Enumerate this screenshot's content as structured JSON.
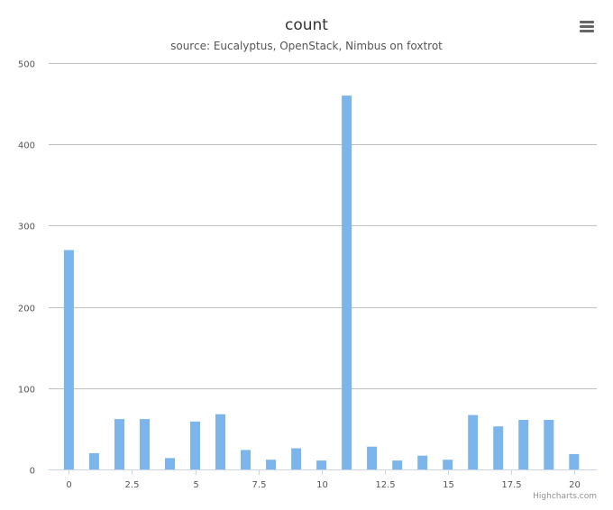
{
  "chart_data": {
    "type": "bar",
    "title": "count",
    "subtitle": "source: Eucalyptus, OpenStack, Nimbus on foxtrot",
    "x": [
      0,
      1,
      2,
      3,
      4,
      5,
      6,
      7,
      8,
      9,
      10,
      11,
      12,
      13,
      14,
      15,
      16,
      17,
      18,
      19,
      20
    ],
    "values": [
      270,
      20,
      62,
      62,
      14,
      59,
      68,
      24,
      12,
      26,
      11,
      460,
      28,
      11,
      17,
      12,
      67,
      53,
      61,
      61,
      19
    ],
    "xlim": [
      -0.8,
      20.9
    ],
    "ylim": [
      0,
      500
    ],
    "x_ticks": [
      0,
      2.5,
      5,
      7.5,
      10,
      12.5,
      15,
      17.5,
      20
    ],
    "x_tick_labels": [
      "0",
      "2.5",
      "5",
      "7.5",
      "10",
      "12.5",
      "15",
      "17.5",
      "20"
    ],
    "y_ticks": [
      0,
      100,
      200,
      300,
      400,
      500
    ],
    "y_tick_labels": [
      "0",
      "100",
      "200",
      "300",
      "400",
      "500"
    ],
    "grid": true,
    "legend": false,
    "colors": {
      "bar": "#7cb5ec",
      "grid": "#c0c0c0",
      "axis": "#ccd6eb"
    }
  },
  "credits": "Highcharts.com",
  "menu_icon": "hamburger-menu-icon"
}
